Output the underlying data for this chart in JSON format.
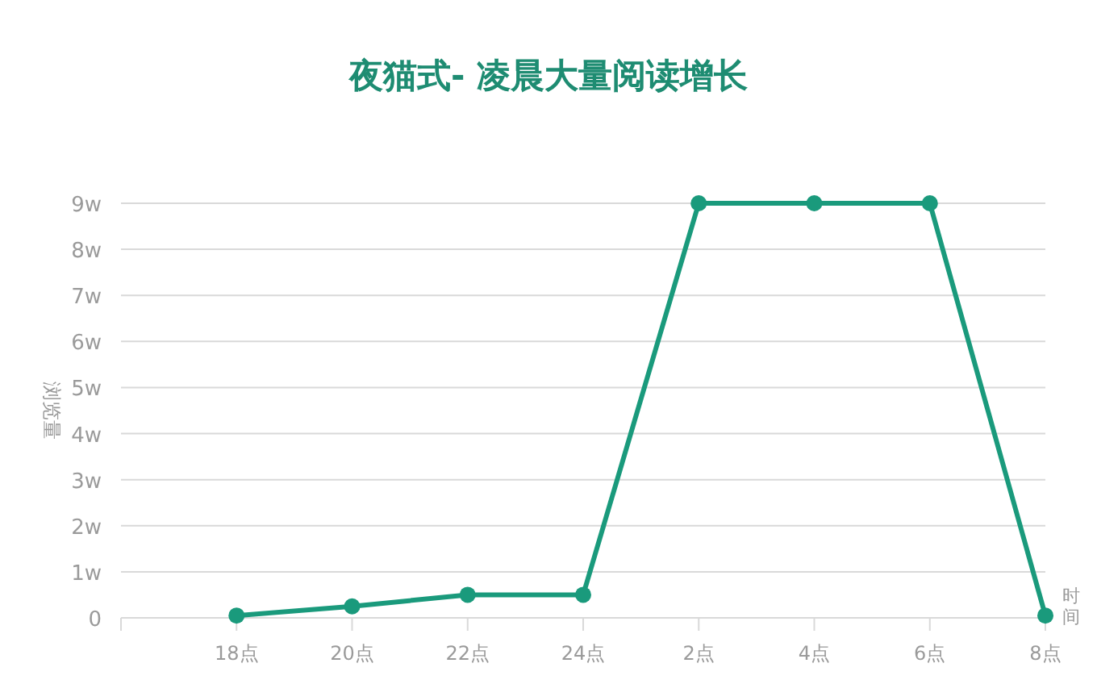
{
  "chart_data": {
    "type": "line",
    "title": "夜猫式- 凌晨大量阅读增长",
    "xlabel": "时间",
    "ylabel": "浏览量",
    "categories": [
      null,
      "18点",
      "20点",
      "22点",
      "24点",
      "2点",
      "4点",
      "6点",
      "8点"
    ],
    "series": [
      {
        "color": "#1a9a7c",
        "values": [
          null,
          0.05,
          0.25,
          0.5,
          0.5,
          9,
          9,
          9,
          0.05
        ]
      }
    ],
    "ylim": [
      0,
      9
    ],
    "yticks": [
      0,
      {
        "value": 1,
        "label": "1w"
      },
      {
        "value": 2,
        "label": "2w"
      },
      {
        "value": 3,
        "label": "3w"
      },
      {
        "value": 4,
        "label": "4w"
      },
      {
        "value": 5,
        "label": "5w"
      },
      {
        "value": 6,
        "label": "6w"
      },
      {
        "value": 7,
        "label": "7w"
      },
      {
        "value": 8,
        "label": "8w"
      },
      {
        "value": 9,
        "label": "9w"
      }
    ],
    "grid": "y",
    "marker": "circle",
    "line_style": "solid"
  }
}
